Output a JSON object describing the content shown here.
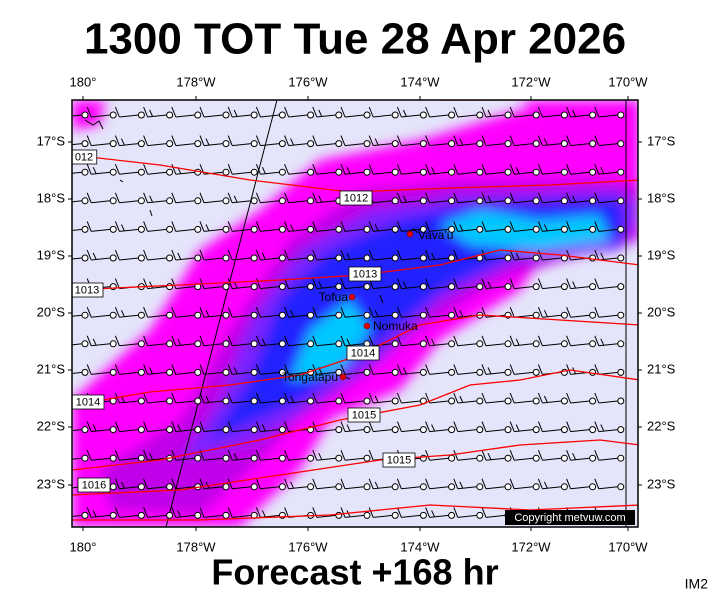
{
  "title": "1300 TOT Tue 28 Apr 2026",
  "footer": "Forecast +168 hr",
  "image_id": "IM2",
  "copyright": "Copyright metvuw.com",
  "longitude_labels": [
    "180°",
    "178°W",
    "176°W",
    "174°W",
    "172°W",
    "170°W"
  ],
  "latitude_labels": [
    "17°S",
    "18°S",
    "19°S",
    "20°S",
    "21°S",
    "22°S",
    "23°S"
  ],
  "places": [
    "Vava'u",
    "Tofua",
    "Nomuka",
    "Tongatapu"
  ],
  "isobar_labels": [
    "012",
    "1012",
    "1013",
    "1013",
    "1014",
    "1014",
    "1015",
    "1015",
    "1016"
  ]
}
